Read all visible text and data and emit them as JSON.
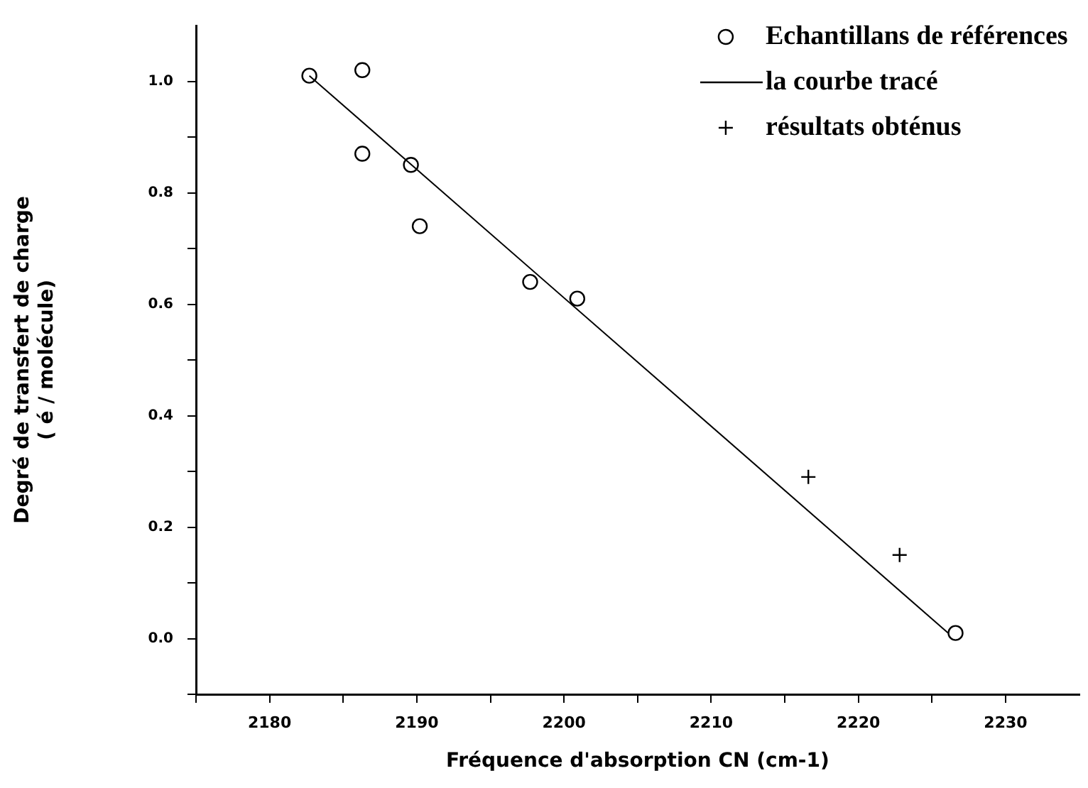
{
  "chart_data": {
    "type": "scatter",
    "xlabel": "Fréquence d'absorption CN (cm-1)",
    "ylabel": "Degré de transfert de charge\n( é / molécule)",
    "xlim": [
      2175,
      2235
    ],
    "ylim": [
      -0.1,
      1.1
    ],
    "xticks": [
      {
        "value": 2175,
        "label": null
      },
      2180,
      {
        "value": 2185,
        "label": null
      },
      2190,
      {
        "value": 2195,
        "label": null
      },
      2200,
      {
        "value": 2205,
        "label": null
      },
      2210,
      {
        "value": 2215,
        "label": null
      },
      2220,
      {
        "value": 2225,
        "label": null
      },
      2230
    ],
    "yticks": [
      {
        "value": -0.1,
        "label": null
      },
      {
        "value": 0,
        "label": "0.0"
      },
      {
        "value": 0.1,
        "label": null
      },
      0.2,
      {
        "value": 0.3,
        "label": null
      },
      0.4,
      {
        "value": 0.5,
        "label": null
      },
      0.6,
      {
        "value": 0.7,
        "label": null
      },
      0.8,
      {
        "value": 0.9,
        "label": null
      },
      {
        "value": 1,
        "label": "1.0"
      }
    ],
    "grid": false,
    "legend": "top right",
    "series": [
      {
        "name": "Echantillans de références",
        "type": "scatter",
        "marker": "circle",
        "color": "#000000",
        "x": [
          2182.7,
          2186.3,
          2186.3,
          2189.6,
          2190.2,
          2197.7,
          2200.9,
          2226.6
        ],
        "values": [
          1.01,
          1.02,
          0.87,
          0.85,
          0.74,
          0.64,
          0.61,
          0.01
        ]
      },
      {
        "name": "la courbe tracé",
        "type": "line",
        "marker": "none",
        "line_style": "solid",
        "color": "#000000",
        "x": [
          2182.7,
          2226.1
        ],
        "values": [
          1.01,
          0.01
        ]
      },
      {
        "name": "résultats obténus",
        "type": "scatter",
        "marker": "cross",
        "color": "#000000",
        "x": [
          2216.6,
          2222.8
        ],
        "values": [
          0.29,
          0.15
        ]
      }
    ]
  }
}
